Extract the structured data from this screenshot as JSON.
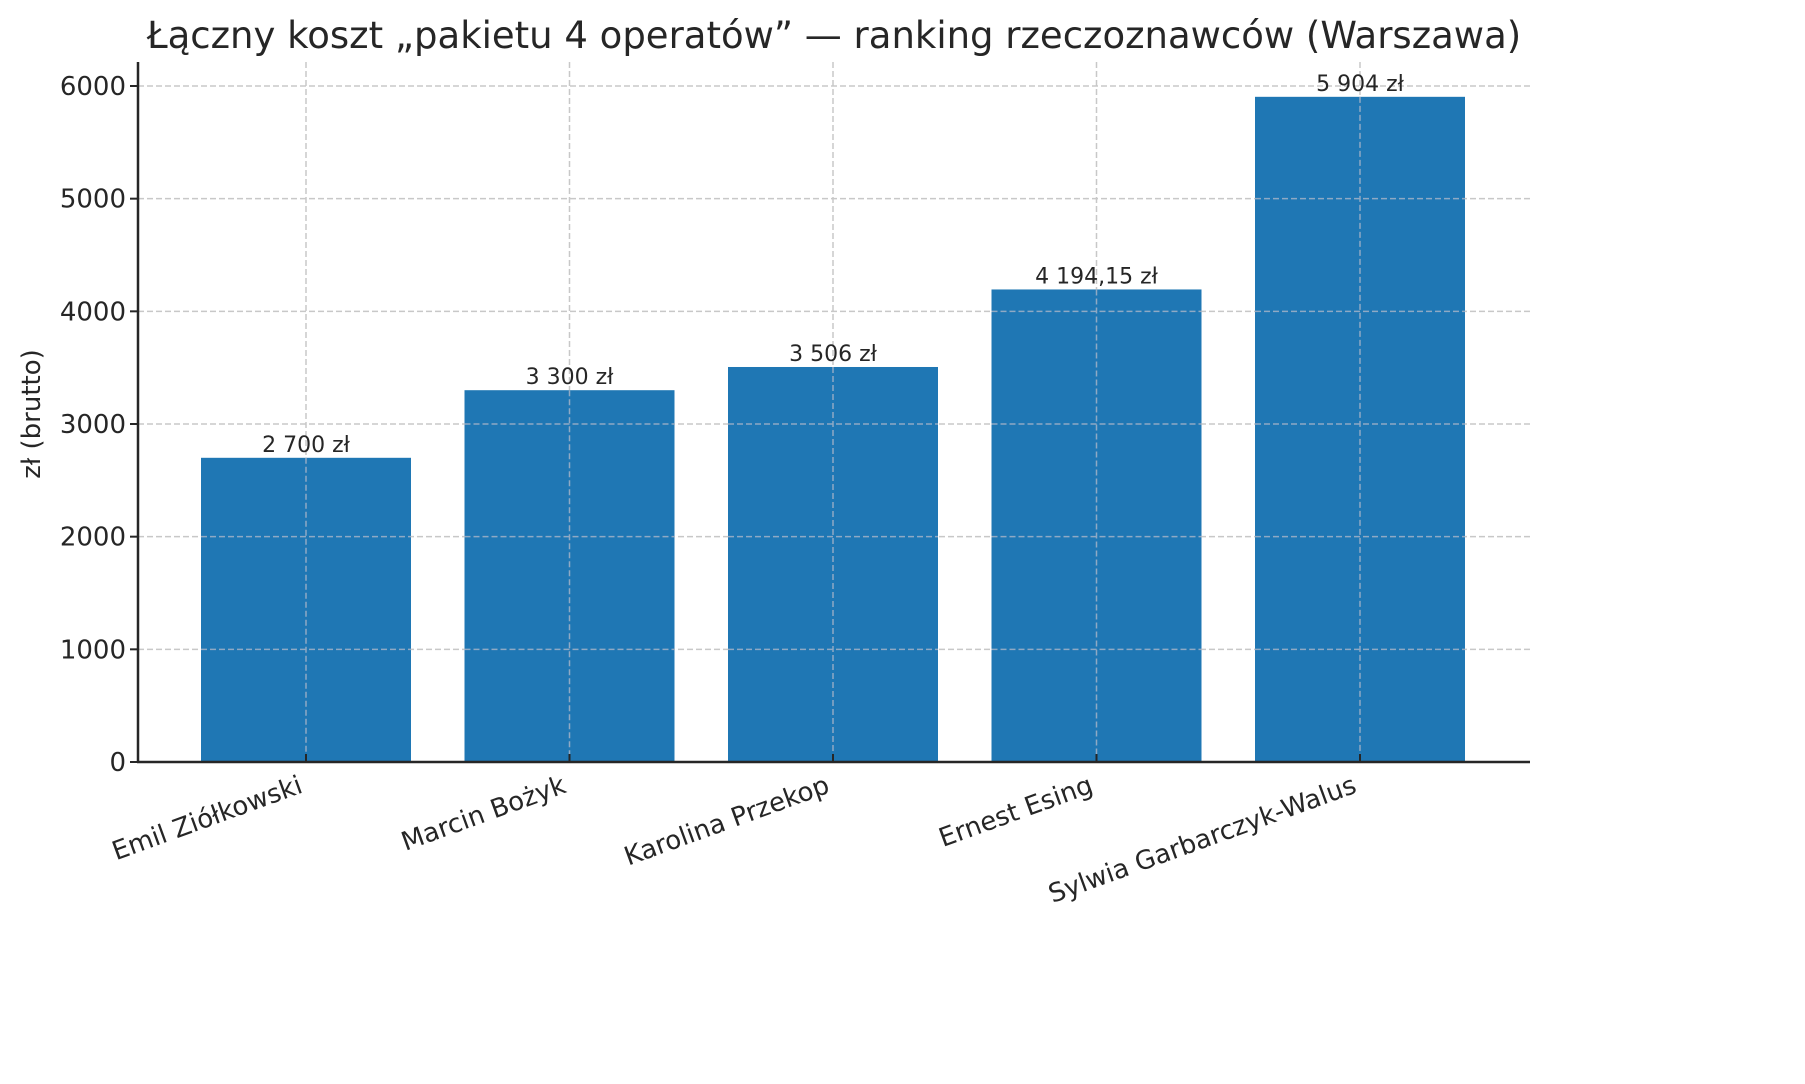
{
  "chart_data": {
    "type": "bar",
    "title": "Łączny koszt „pakietu 4 operatów” — ranking rzeczoznawców (Warszawa)",
    "xlabel": "",
    "ylabel": "zł (brutto)",
    "categories": [
      "Emil Ziółkowski",
      "Marcin Bożyk",
      "Karolina Przekop",
      "Ernest Esing",
      "Sylwia Garbarczyk-Walus"
    ],
    "values": [
      2700,
      3300,
      3506,
      4194.15,
      5904
    ],
    "value_labels": [
      "2 700 zł",
      "3 300 zł",
      "3 506 zł",
      "4 194,15 zł",
      "5 904 zł"
    ],
    "ylim": [
      0,
      6200
    ],
    "yticks": [
      0,
      1000,
      2000,
      3000,
      4000,
      5000,
      6000
    ],
    "ytick_labels": [
      "0",
      "1000",
      "2000",
      "3000",
      "4000",
      "5000",
      "6000"
    ],
    "grid": true,
    "grid_style": "dashed",
    "legend": null,
    "xtick_rotation": 20
  },
  "colors": {
    "bar": "#1f77b4",
    "grid": "#c8c8c8",
    "axis": "#262626",
    "text": "#262626"
  }
}
